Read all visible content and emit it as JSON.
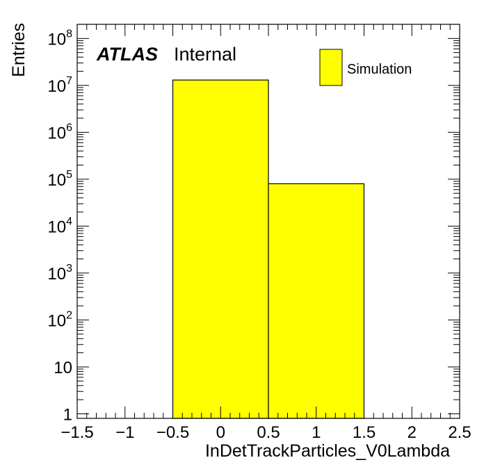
{
  "chart_data": {
    "type": "bar",
    "histogram": true,
    "bin_edges": [
      -1.5,
      -0.5,
      0.5,
      1.5,
      2.5
    ],
    "values": [
      0,
      13000000,
      80000,
      0
    ],
    "xlim": [
      -1.5,
      2.5
    ],
    "ylim": [
      0.8,
      200000000
    ],
    "yscale": "log",
    "xlabel": "InDetTrackParticles_V0Lambda",
    "ylabel": "Entries",
    "x_ticks": [
      -1.5,
      -1,
      -0.5,
      0,
      0.5,
      1,
      1.5,
      2,
      2.5
    ],
    "x_tick_labels": [
      "−1.5",
      "−1",
      "−0.5",
      "0",
      "0.5",
      "1",
      "1.5",
      "2",
      "2.5"
    ],
    "y_ticks": [
      {
        "value": 1,
        "base": "1",
        "exp": ""
      },
      {
        "value": 10,
        "base": "10",
        "exp": ""
      },
      {
        "value": 100,
        "base": "10",
        "exp": "2"
      },
      {
        "value": 1000,
        "base": "10",
        "exp": "3"
      },
      {
        "value": 10000,
        "base": "10",
        "exp": "4"
      },
      {
        "value": 100000,
        "base": "10",
        "exp": "5"
      },
      {
        "value": 1000000,
        "base": "10",
        "exp": "6"
      },
      {
        "value": 10000000,
        "base": "10",
        "exp": "7"
      },
      {
        "value": 100000000,
        "base": "10",
        "exp": "8"
      }
    ],
    "legend": {
      "entries": [
        {
          "name": "Simulation",
          "color": "#ffff00"
        }
      ],
      "position": "top-right"
    },
    "label": {
      "experiment": "ATLAS",
      "status": "Internal"
    },
    "fill_color": "#ffff00",
    "line_color": "#000000",
    "grid": false
  }
}
